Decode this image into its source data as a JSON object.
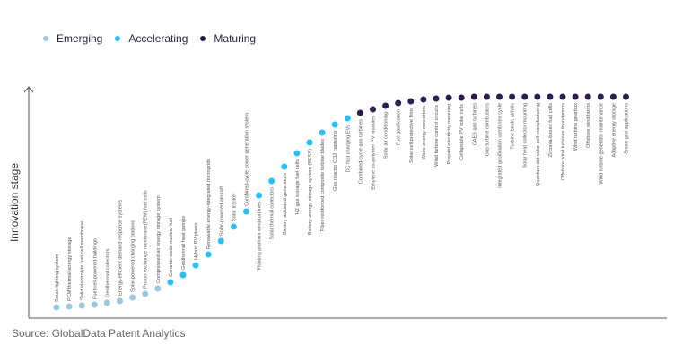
{
  "legend": [
    {
      "label": "Emerging",
      "color": "#9cc8de"
    },
    {
      "label": "Accelerating",
      "color": "#2bbff2"
    },
    {
      "label": "Maturing",
      "color": "#2c1d4e"
    }
  ],
  "source": "Source: GlobalData Patent Analytics",
  "chart_data": {
    "type": "scatter",
    "ylabel": "Innovation stage",
    "xlabel": "",
    "legend_position": "top-left",
    "grid": false,
    "points": [
      {
        "label": "Smart lighting system",
        "stage": "Emerging"
      },
      {
        "label": "PCM thermal energy storage",
        "stage": "Emerging"
      },
      {
        "label": "Solid electrolyte fuel cell membrane",
        "stage": "Emerging"
      },
      {
        "label": "Fuel cell-powered buildings",
        "stage": "Emerging"
      },
      {
        "label": "Geothermal collectors",
        "stage": "Emerging"
      },
      {
        "label": "Energy-efficient demand response systems",
        "stage": "Emerging"
      },
      {
        "label": "Solar-powered charging stations",
        "stage": "Emerging"
      },
      {
        "label": "Proton exchange membrane(PEM) fuel cells",
        "stage": "Emerging"
      },
      {
        "label": "Compressed air energy storage system",
        "stage": "Emerging"
      },
      {
        "label": "Ceramic oxide nuclear fuel",
        "stage": "Accelerating"
      },
      {
        "label": "Geothermal heat pumps",
        "stage": "Accelerating"
      },
      {
        "label": "Hybrid PV plants",
        "stage": "Accelerating"
      },
      {
        "label": "Renewable energy-integrated microgrids",
        "stage": "Accelerating"
      },
      {
        "label": "Solar-powered aircraft",
        "stage": "Accelerating"
      },
      {
        "label": "Solar tracker",
        "stage": "Accelerating"
      },
      {
        "label": "Combined-cycle power generation system",
        "stage": "Accelerating"
      },
      {
        "label": "Floating platform wind turbines",
        "stage": "Accelerating"
      },
      {
        "label": "Solar thermal collectors",
        "stage": "Accelerating"
      },
      {
        "label": "Battery actuated generators",
        "stage": "Accelerating"
      },
      {
        "label": "H2 gas storage fuel cells",
        "stage": "Accelerating"
      },
      {
        "label": "Battery energy storage system (BESS)",
        "stage": "Accelerating"
      },
      {
        "label": "Fiber-reinforced composite turbine blades",
        "stage": "Accelerating"
      },
      {
        "label": "Gas reactor CO2 capturing",
        "stage": "Accelerating"
      },
      {
        "label": "DC fast charging EVs",
        "stage": "Accelerating"
      },
      {
        "label": "Combined-cycle gas turbines",
        "stage": "Maturing"
      },
      {
        "label": "Ethylene co-polymer PV modules",
        "stage": "Maturing"
      },
      {
        "label": "Solar air conditioning",
        "stage": "Maturing"
      },
      {
        "label": "Fuel gasification",
        "stage": "Maturing"
      },
      {
        "label": "Solar cell protective films",
        "stage": "Maturing"
      },
      {
        "label": "Wave energy converters",
        "stage": "Maturing"
      },
      {
        "label": "Wind turbine control circuits",
        "stage": "Maturing"
      },
      {
        "label": "Prepaid electricity metering",
        "stage": "Maturing"
      },
      {
        "label": "Collapsible PV solar cells",
        "stage": "Maturing"
      },
      {
        "label": "CAES gas turbines",
        "stage": "Maturing"
      },
      {
        "label": "Gas turbine combustors",
        "stage": "Maturing"
      },
      {
        "label": "Integrated gasification combined cycle",
        "stage": "Maturing"
      },
      {
        "label": "Turbine blade airfoils",
        "stage": "Maturing"
      },
      {
        "label": "Solar heat collector mounting",
        "stage": "Maturing"
      },
      {
        "label": "Quantum dot solar cell manufacturing",
        "stage": "Maturing"
      },
      {
        "label": "Zirconia-based fuel cells",
        "stage": "Maturing"
      },
      {
        "label": "Offshore wind turbines foundations",
        "stage": "Maturing"
      },
      {
        "label": "Wind turbine gearbox",
        "stage": "Maturing"
      },
      {
        "label": "Offshore wind farms",
        "stage": "Maturing"
      },
      {
        "label": "Wind turbine generator maintenance",
        "stage": "Maturing"
      },
      {
        "label": "Adaptive energy storage",
        "stage": "Maturing"
      },
      {
        "label": "Smart grid applications",
        "stage": "Maturing"
      }
    ]
  }
}
